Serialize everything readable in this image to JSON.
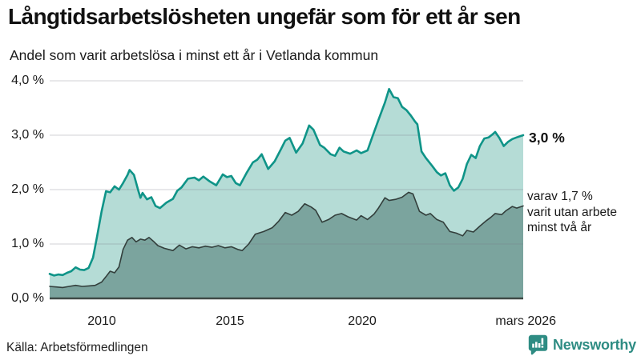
{
  "header": {
    "title": "Långtidsarbetslösheten ungefär som för ett år sen",
    "subtitle": "Andel som varit arbetslösa i minst ett år i Vetlanda kommun"
  },
  "footer": {
    "source": "Källa: Arbetsförmedlingen",
    "brand": "Newsworthy",
    "brand_color": "#2e8c83"
  },
  "chart_data": {
    "type": "area",
    "title": "Långtidsarbetslösheten ungefär som för ett år sen",
    "subtitle": "Andel som varit arbetslösa i minst ett år i Vetlanda kommun",
    "x_domain": [
      2008.0,
      2026.25
    ],
    "grid": true,
    "axis_color": "#3f4a47",
    "grid_color": "rgba(125,125,138,0.28)",
    "y_axis": {
      "max": 4.0,
      "min": 0.0,
      "labels": [
        "4,0 %",
        "3,0 %",
        "2,0 %",
        "1,0 %",
        "0,0 %"
      ],
      "tick_values": [
        4,
        3,
        2,
        1,
        0
      ],
      "grid_values": [
        1,
        2,
        3,
        4
      ]
    },
    "x_axis": {
      "labels": [
        "2010",
        "2015",
        "2020",
        "mars 2026"
      ],
      "tick_values": [
        2010,
        2015,
        2020,
        2026.2
      ]
    },
    "end_labels": {
      "total": "3,0 %",
      "two_year_line1": "varav 1,7 %",
      "two_year_line2": "varit utan arbete",
      "two_year_line3": "minst två år"
    },
    "latest": {
      "total_pct": 3.0,
      "two_year_pct": 1.7,
      "period": "mars 2026"
    },
    "series": [
      {
        "id": "total",
        "name": "Arbetslösa minst ett år",
        "color": "#0f9488",
        "fill": "#b5dcd6",
        "points": [
          [
            2008.0,
            0.45
          ],
          [
            2008.17,
            0.42
          ],
          [
            2008.33,
            0.44
          ],
          [
            2008.5,
            0.43
          ],
          [
            2008.67,
            0.47
          ],
          [
            2008.83,
            0.5
          ],
          [
            2009.0,
            0.57
          ],
          [
            2009.17,
            0.53
          ],
          [
            2009.33,
            0.52
          ],
          [
            2009.5,
            0.56
          ],
          [
            2009.67,
            0.75
          ],
          [
            2009.83,
            1.15
          ],
          [
            2010.0,
            1.6
          ],
          [
            2010.17,
            1.97
          ],
          [
            2010.33,
            1.95
          ],
          [
            2010.5,
            2.06
          ],
          [
            2010.67,
            2.0
          ],
          [
            2010.83,
            2.12
          ],
          [
            2011.0,
            2.27
          ],
          [
            2011.08,
            2.36
          ],
          [
            2011.25,
            2.27
          ],
          [
            2011.42,
            1.97
          ],
          [
            2011.5,
            1.85
          ],
          [
            2011.58,
            1.94
          ],
          [
            2011.75,
            1.82
          ],
          [
            2011.92,
            1.86
          ],
          [
            2012.08,
            1.7
          ],
          [
            2012.25,
            1.66
          ],
          [
            2012.5,
            1.76
          ],
          [
            2012.75,
            1.83
          ],
          [
            2012.92,
            1.98
          ],
          [
            2013.08,
            2.04
          ],
          [
            2013.33,
            2.2
          ],
          [
            2013.58,
            2.22
          ],
          [
            2013.75,
            2.17
          ],
          [
            2013.92,
            2.24
          ],
          [
            2014.17,
            2.15
          ],
          [
            2014.42,
            2.08
          ],
          [
            2014.67,
            2.28
          ],
          [
            2014.83,
            2.23
          ],
          [
            2015.0,
            2.25
          ],
          [
            2015.17,
            2.12
          ],
          [
            2015.33,
            2.08
          ],
          [
            2015.58,
            2.3
          ],
          [
            2015.83,
            2.5
          ],
          [
            2016.0,
            2.55
          ],
          [
            2016.17,
            2.65
          ],
          [
            2016.42,
            2.38
          ],
          [
            2016.67,
            2.52
          ],
          [
            2016.92,
            2.75
          ],
          [
            2017.08,
            2.9
          ],
          [
            2017.25,
            2.95
          ],
          [
            2017.5,
            2.68
          ],
          [
            2017.75,
            2.85
          ],
          [
            2018.0,
            3.18
          ],
          [
            2018.17,
            3.1
          ],
          [
            2018.42,
            2.82
          ],
          [
            2018.58,
            2.77
          ],
          [
            2018.83,
            2.65
          ],
          [
            2019.0,
            2.62
          ],
          [
            2019.17,
            2.77
          ],
          [
            2019.33,
            2.7
          ],
          [
            2019.58,
            2.66
          ],
          [
            2019.83,
            2.72
          ],
          [
            2020.0,
            2.67
          ],
          [
            2020.25,
            2.72
          ],
          [
            2020.42,
            2.95
          ],
          [
            2020.67,
            3.28
          ],
          [
            2020.92,
            3.6
          ],
          [
            2021.08,
            3.85
          ],
          [
            2021.25,
            3.7
          ],
          [
            2021.42,
            3.68
          ],
          [
            2021.58,
            3.52
          ],
          [
            2021.75,
            3.46
          ],
          [
            2021.92,
            3.36
          ],
          [
            2022.08,
            3.25
          ],
          [
            2022.17,
            3.2
          ],
          [
            2022.33,
            2.7
          ],
          [
            2022.5,
            2.58
          ],
          [
            2022.75,
            2.43
          ],
          [
            2022.92,
            2.32
          ],
          [
            2023.08,
            2.26
          ],
          [
            2023.25,
            2.3
          ],
          [
            2023.42,
            2.08
          ],
          [
            2023.58,
            1.98
          ],
          [
            2023.75,
            2.04
          ],
          [
            2023.92,
            2.2
          ],
          [
            2024.08,
            2.47
          ],
          [
            2024.25,
            2.64
          ],
          [
            2024.42,
            2.58
          ],
          [
            2024.58,
            2.8
          ],
          [
            2024.75,
            2.94
          ],
          [
            2024.92,
            2.96
          ],
          [
            2025.08,
            3.02
          ],
          [
            2025.17,
            3.06
          ],
          [
            2025.33,
            2.95
          ],
          [
            2025.5,
            2.8
          ],
          [
            2025.67,
            2.88
          ],
          [
            2025.83,
            2.93
          ],
          [
            2026.0,
            2.96
          ],
          [
            2026.25,
            3.0
          ]
        ]
      },
      {
        "id": "two-year",
        "name": "Utan arbete minst två år",
        "color": "#333f3c",
        "fill": "#7ba49e",
        "points": [
          [
            2008.0,
            0.22
          ],
          [
            2008.25,
            0.21
          ],
          [
            2008.5,
            0.2
          ],
          [
            2008.75,
            0.22
          ],
          [
            2009.0,
            0.24
          ],
          [
            2009.25,
            0.22
          ],
          [
            2009.5,
            0.23
          ],
          [
            2009.75,
            0.24
          ],
          [
            2010.0,
            0.3
          ],
          [
            2010.17,
            0.4
          ],
          [
            2010.33,
            0.5
          ],
          [
            2010.5,
            0.47
          ],
          [
            2010.67,
            0.58
          ],
          [
            2010.83,
            0.9
          ],
          [
            2011.0,
            1.07
          ],
          [
            2011.17,
            1.12
          ],
          [
            2011.33,
            1.04
          ],
          [
            2011.5,
            1.09
          ],
          [
            2011.67,
            1.07
          ],
          [
            2011.83,
            1.12
          ],
          [
            2012.0,
            1.05
          ],
          [
            2012.17,
            0.97
          ],
          [
            2012.42,
            0.92
          ],
          [
            2012.75,
            0.88
          ],
          [
            2013.0,
            0.98
          ],
          [
            2013.25,
            0.91
          ],
          [
            2013.5,
            0.95
          ],
          [
            2013.75,
            0.93
          ],
          [
            2014.0,
            0.96
          ],
          [
            2014.25,
            0.94
          ],
          [
            2014.5,
            0.97
          ],
          [
            2014.75,
            0.93
          ],
          [
            2015.0,
            0.95
          ],
          [
            2015.25,
            0.9
          ],
          [
            2015.42,
            0.88
          ],
          [
            2015.67,
            1.0
          ],
          [
            2015.92,
            1.18
          ],
          [
            2016.25,
            1.23
          ],
          [
            2016.58,
            1.3
          ],
          [
            2016.83,
            1.42
          ],
          [
            2017.08,
            1.58
          ],
          [
            2017.33,
            1.53
          ],
          [
            2017.58,
            1.6
          ],
          [
            2017.83,
            1.74
          ],
          [
            2018.08,
            1.68
          ],
          [
            2018.25,
            1.62
          ],
          [
            2018.5,
            1.4
          ],
          [
            2018.75,
            1.45
          ],
          [
            2019.0,
            1.53
          ],
          [
            2019.25,
            1.56
          ],
          [
            2019.5,
            1.5
          ],
          [
            2019.83,
            1.44
          ],
          [
            2020.0,
            1.52
          ],
          [
            2020.25,
            1.45
          ],
          [
            2020.5,
            1.55
          ],
          [
            2020.67,
            1.66
          ],
          [
            2020.92,
            1.85
          ],
          [
            2021.08,
            1.8
          ],
          [
            2021.33,
            1.82
          ],
          [
            2021.58,
            1.86
          ],
          [
            2021.83,
            1.95
          ],
          [
            2022.0,
            1.92
          ],
          [
            2022.25,
            1.6
          ],
          [
            2022.5,
            1.53
          ],
          [
            2022.67,
            1.56
          ],
          [
            2022.92,
            1.45
          ],
          [
            2023.17,
            1.4
          ],
          [
            2023.42,
            1.23
          ],
          [
            2023.67,
            1.2
          ],
          [
            2023.92,
            1.15
          ],
          [
            2024.08,
            1.25
          ],
          [
            2024.33,
            1.22
          ],
          [
            2024.58,
            1.33
          ],
          [
            2024.83,
            1.43
          ],
          [
            2025.0,
            1.49
          ],
          [
            2025.17,
            1.56
          ],
          [
            2025.42,
            1.54
          ],
          [
            2025.58,
            1.61
          ],
          [
            2025.83,
            1.69
          ],
          [
            2026.0,
            1.66
          ],
          [
            2026.25,
            1.7
          ]
        ]
      }
    ]
  }
}
